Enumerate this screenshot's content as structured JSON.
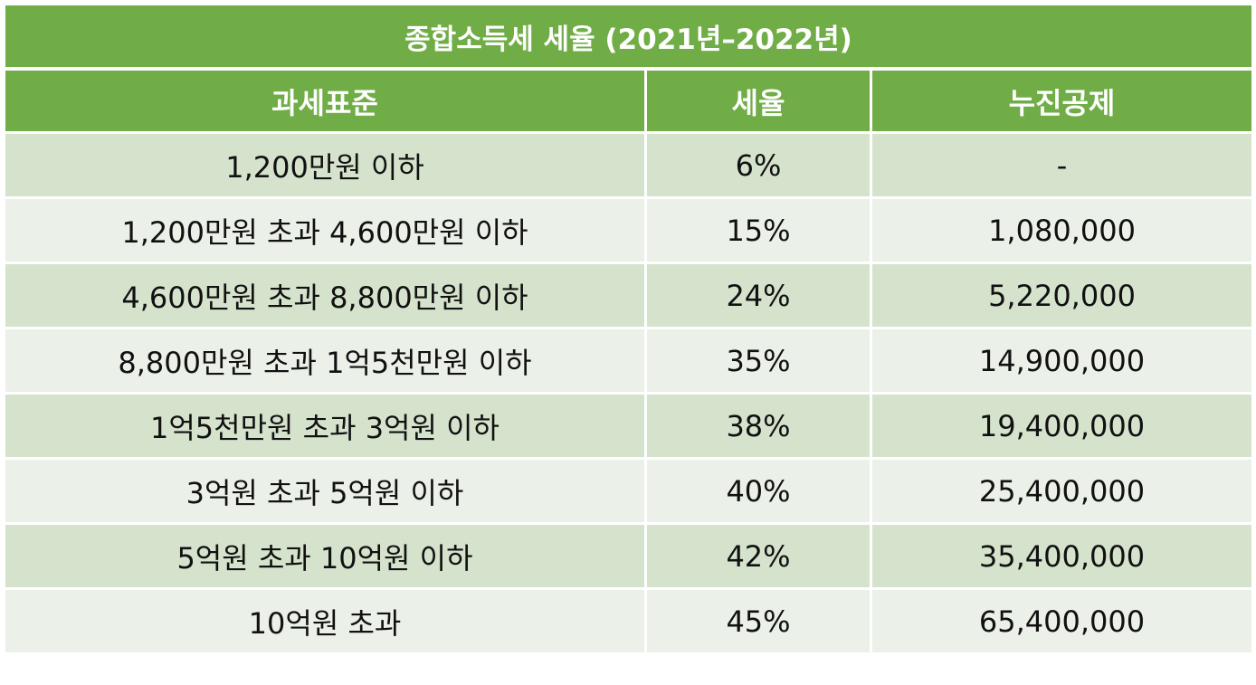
{
  "table": {
    "title": "종합소득세 세율 (2021년–2022년)",
    "columns": [
      "과세표준",
      "세율",
      "누진공제"
    ],
    "rows": [
      [
        "1,200만원 이하",
        "6%",
        "-"
      ],
      [
        "1,200만원 초과 4,600만원 이하",
        "15%",
        "1,080,000"
      ],
      [
        "4,600만원 초과 8,800만원 이하",
        "24%",
        "5,220,000"
      ],
      [
        "8,800만원 초과 1억5천만원 이하",
        "35%",
        "14,900,000"
      ],
      [
        "1억5천만원 초과 3억원 이하",
        "38%",
        "19,400,000"
      ],
      [
        "3억원 초과 5억원 이하",
        "40%",
        "25,400,000"
      ],
      [
        "5억원 초과 10억원 이하",
        "42%",
        "35,400,000"
      ],
      [
        "10억원 초과",
        "45%",
        "65,400,000"
      ]
    ],
    "colors": {
      "header_bg": "#70ad47",
      "row_odd_bg": "#d5e3cd",
      "row_even_bg": "#ebf0e8",
      "border": "#ffffff"
    }
  }
}
